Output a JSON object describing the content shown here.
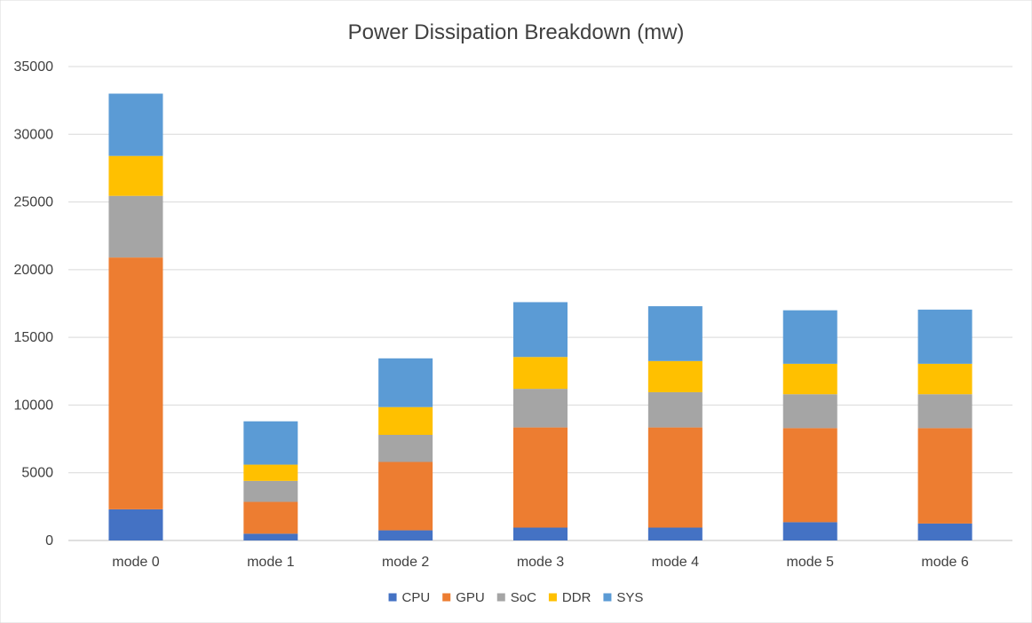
{
  "chart_data": {
    "type": "bar",
    "stacked": true,
    "title": "Power Dissipation Breakdown (mw)",
    "xlabel": "",
    "ylabel": "",
    "ylim": [
      0,
      35000
    ],
    "y_ticks": [
      0,
      5000,
      10000,
      15000,
      20000,
      25000,
      30000,
      35000
    ],
    "grid": true,
    "legend_position": "bottom",
    "categories": [
      "mode 0",
      "mode 1",
      "mode 2",
      "mode 3",
      "mode 4",
      "mode 5",
      "mode 6"
    ],
    "series": [
      {
        "name": "CPU",
        "color": "#4472C4",
        "values": [
          2300,
          500,
          750,
          950,
          950,
          1350,
          1250
        ]
      },
      {
        "name": "GPU",
        "color": "#ED7D31",
        "values": [
          18600,
          2350,
          5050,
          7400,
          7400,
          6950,
          7050
        ]
      },
      {
        "name": "SoC",
        "color": "#A5A5A5",
        "values": [
          4550,
          1550,
          2000,
          2850,
          2600,
          2500,
          2500
        ]
      },
      {
        "name": "DDR",
        "color": "#FFC000",
        "values": [
          2950,
          1200,
          2050,
          2350,
          2300,
          2250,
          2250
        ]
      },
      {
        "name": "SYS",
        "color": "#5B9BD5",
        "values": [
          4600,
          3200,
          3600,
          4050,
          4050,
          3950,
          4000
        ]
      }
    ]
  }
}
